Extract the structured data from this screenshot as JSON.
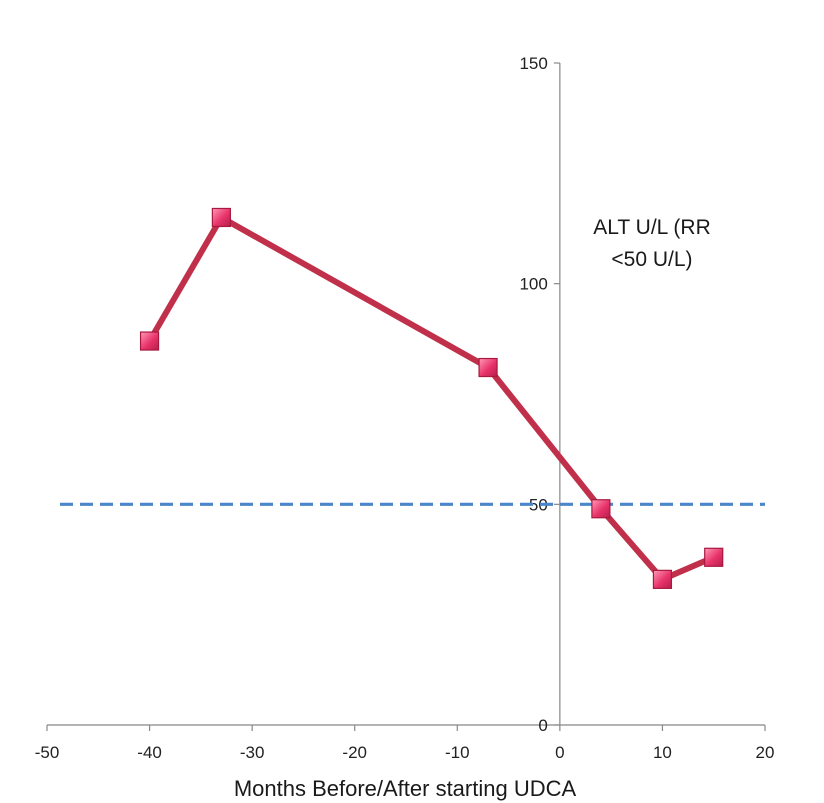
{
  "chart_data": {
    "type": "line",
    "xlabel": "Months Before/After starting UDCA",
    "ylabel_lines": [
      "ALT U/L (RR",
      "<50 U/L)"
    ],
    "xlim": [
      -50,
      20
    ],
    "ylim": [
      0,
      150
    ],
    "x_ticks": [
      -50,
      -40,
      -30,
      -20,
      -10,
      0,
      10,
      20
    ],
    "y_ticks": [
      0,
      50,
      100,
      150
    ],
    "x_tick_labels": [
      "-50",
      "-40",
      "-30",
      "-20",
      "-10",
      "0",
      "10",
      "20"
    ],
    "y_tick_labels": [
      "0",
      "50",
      "100",
      "150"
    ],
    "series": [
      {
        "x": [
          -40,
          -33,
          -7,
          4,
          10,
          15
        ],
        "y": [
          87,
          115,
          81,
          49,
          33,
          38
        ],
        "color": "#c0304a",
        "marker_color": "#e8336a"
      }
    ],
    "reference_line": {
      "y": 50,
      "color": "#4a86c8",
      "style": "dashed"
    },
    "grid": false
  }
}
